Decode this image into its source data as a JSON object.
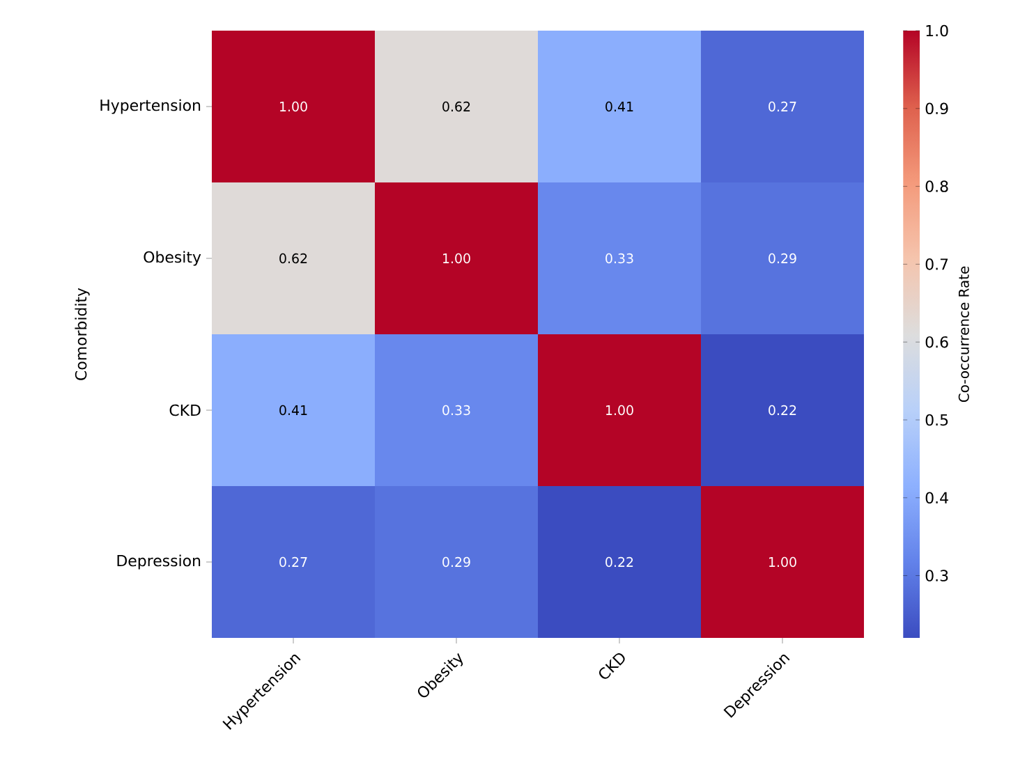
{
  "chart_data": {
    "type": "heatmap",
    "categories": [
      "Hypertension",
      "Obesity",
      "CKD",
      "Depression"
    ],
    "y_categories": [
      "Hypertension",
      "Obesity",
      "CKD",
      "Depression"
    ],
    "cells": [
      [
        1.0,
        0.62,
        0.41,
        0.27
      ],
      [
        0.62,
        1.0,
        0.33,
        0.29
      ],
      [
        0.41,
        0.33,
        1.0,
        0.22
      ],
      [
        0.27,
        0.29,
        0.22,
        1.0
      ]
    ],
    "cell_labels": [
      [
        "1.00",
        "0.62",
        "0.41",
        "0.27"
      ],
      [
        "0.62",
        "1.00",
        "0.33",
        "0.29"
      ],
      [
        "0.41",
        "0.33",
        "1.00",
        "0.22"
      ],
      [
        "0.27",
        "0.29",
        "0.22",
        "1.00"
      ]
    ],
    "ylabel": "Comorbidity",
    "clabel": "Co-occurrence Rate",
    "clim": [
      0.22,
      1.0
    ],
    "cticks": [
      0.3,
      0.4,
      0.5,
      0.6,
      0.7,
      0.8,
      0.9,
      {
        "value": 1.0,
        "label": "1.0"
      }
    ]
  }
}
